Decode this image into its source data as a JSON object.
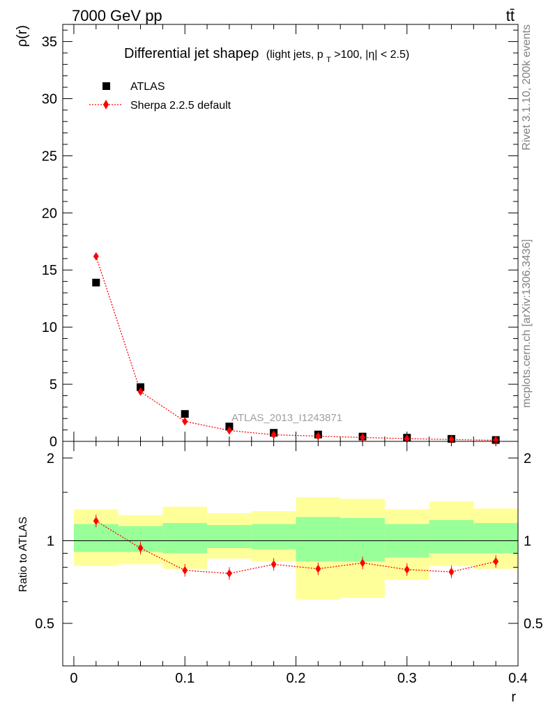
{
  "header": {
    "left": "7000 GeV pp",
    "right": "tt̄"
  },
  "side_labels": {
    "rivet": "Rivet 3.1.10,  200k events",
    "mcplots": "mcplots.cern.ch [arXiv:1306.3436]"
  },
  "colors": {
    "data": "#000000",
    "mc": "#ff0000",
    "band_inner": "#99ff99",
    "band_outer": "#ffff99"
  },
  "chart_data": [
    {
      "type": "scatter",
      "title": "Differential jet shapeρ",
      "title_note_parts": [
        "(light jets, p",
        "T",
        ">100, |η| < 2.5)"
      ],
      "analysis_label": "ATLAS_2013_I1243871",
      "xlabel": "",
      "ylabel": "ρ(r)",
      "xlim": [
        -0.01,
        0.4
      ],
      "ylim": [
        0,
        36.5
      ],
      "yticks": [
        0,
        5,
        10,
        15,
        20,
        25,
        30,
        35
      ],
      "legend_position": "top-left",
      "x": [
        0.02,
        0.06,
        0.1,
        0.14,
        0.18,
        0.22,
        0.26,
        0.3,
        0.34,
        0.38
      ],
      "series": [
        {
          "name": "ATLAS",
          "marker": "square",
          "values": [
            13.9,
            4.75,
            2.4,
            1.3,
            0.75,
            0.6,
            0.42,
            0.32,
            0.22,
            0.12
          ]
        },
        {
          "name": "Sherpa 2.2.5 default",
          "marker": "diamond",
          "line": "dotted",
          "values": [
            16.2,
            4.35,
            1.75,
            0.95,
            0.58,
            0.46,
            0.34,
            0.24,
            0.16,
            0.09
          ]
        }
      ]
    },
    {
      "type": "scatter",
      "title": "",
      "xlabel": "r",
      "ylabel": "Ratio to ATLAS",
      "xlim": [
        -0.01,
        0.4
      ],
      "ylim": [
        0.35,
        2.3
      ],
      "yticks": [
        0.5,
        1,
        2
      ],
      "xticks": [
        0,
        0.1,
        0.2,
        0.3,
        0.4
      ],
      "reference_line": 1,
      "bins": [
        [
          0.0,
          0.04
        ],
        [
          0.04,
          0.08
        ],
        [
          0.08,
          0.12
        ],
        [
          0.12,
          0.16
        ],
        [
          0.16,
          0.2
        ],
        [
          0.2,
          0.24
        ],
        [
          0.24,
          0.28
        ],
        [
          0.28,
          0.32
        ],
        [
          0.32,
          0.36
        ],
        [
          0.36,
          0.4
        ]
      ],
      "band_inner": [
        [
          0.91,
          1.15
        ],
        [
          0.91,
          1.13
        ],
        [
          0.9,
          1.16
        ],
        [
          0.94,
          1.14
        ],
        [
          0.93,
          1.15
        ],
        [
          0.84,
          1.22
        ],
        [
          0.84,
          1.21
        ],
        [
          0.87,
          1.15
        ],
        [
          0.9,
          1.19
        ],
        [
          0.9,
          1.16
        ]
      ],
      "band_outer": [
        [
          0.81,
          1.3
        ],
        [
          0.82,
          1.24
        ],
        [
          0.79,
          1.33
        ],
        [
          0.86,
          1.26
        ],
        [
          0.84,
          1.28
        ],
        [
          0.61,
          1.44
        ],
        [
          0.62,
          1.42
        ],
        [
          0.72,
          1.3
        ],
        [
          0.81,
          1.39
        ],
        [
          0.79,
          1.31
        ]
      ],
      "x": [
        0.02,
        0.06,
        0.1,
        0.14,
        0.18,
        0.22,
        0.26,
        0.3,
        0.34,
        0.38
      ],
      "series": [
        {
          "name": "Sherpa 2.2.5 default",
          "values": [
            1.18,
            0.94,
            0.78,
            0.76,
            0.82,
            0.79,
            0.83,
            0.785,
            0.77,
            0.84
          ]
        }
      ]
    }
  ]
}
